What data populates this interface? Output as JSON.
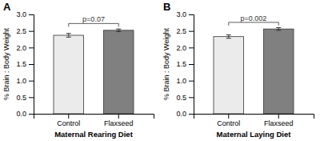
{
  "chart_data": [
    {
      "type": "bar",
      "title": "A",
      "categories": [
        "Control",
        "Flaxseed"
      ],
      "values": [
        2.37,
        2.52
      ],
      "errors": [
        0.055,
        0.04
      ],
      "colors": [
        "#ebebeb",
        "#808080"
      ],
      "xlabel": "Maternal Rearing Diet",
      "ylabel": "% Brain : Body Weight",
      "ylim": [
        0,
        3.0
      ],
      "yticks": [
        {
          "value": 0,
          "label": "0.0"
        },
        0.5,
        {
          "value": 1,
          "label": "1.0"
        },
        1.5,
        {
          "value": 2,
          "label": "2.0"
        },
        2.5,
        {
          "value": 3,
          "label": "3.0"
        }
      ],
      "annotations": [
        {
          "text": "p=0.07",
          "y": 2.725
        }
      ]
    },
    {
      "type": "bar",
      "title": "B",
      "categories": [
        "Control",
        "Flaxseed"
      ],
      "values": [
        2.33,
        2.56
      ],
      "errors": [
        0.05,
        0.04
      ],
      "colors": [
        "#ebebeb",
        "#808080"
      ],
      "xlabel": "Maternal Laying Diet",
      "ylabel": "% Brain : Body Weight",
      "ylim": [
        0,
        3.0
      ],
      "yticks": [
        {
          "value": 0,
          "label": "0.0"
        },
        0.5,
        {
          "value": 1,
          "label": "1.0"
        },
        1.5,
        {
          "value": 2,
          "label": "2.0"
        },
        2.5,
        {
          "value": 3,
          "label": "3.0"
        }
      ],
      "annotations": [
        {
          "text": "p=0.002",
          "y": 2.76
        }
      ]
    }
  ]
}
